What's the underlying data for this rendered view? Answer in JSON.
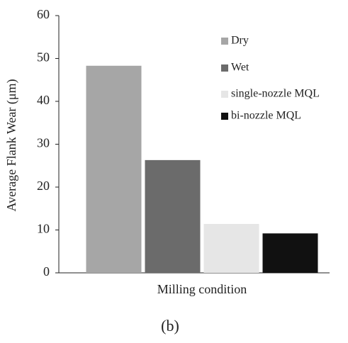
{
  "chart_data": {
    "type": "bar",
    "y_label": "Average Flank Wear (μm)",
    "x_label": "Milling condition",
    "caption": "(b)",
    "categories": [
      null
    ],
    "series": [
      {
        "name": "Dry",
        "color": "#a6a6a6",
        "values": [
          48.3
        ]
      },
      {
        "name": "Wet",
        "color": "#6b6b6b",
        "values": [
          26.3
        ]
      },
      {
        "name": "single-nozzle MQL",
        "color": "#e6e6e6",
        "values": [
          11.4
        ]
      },
      {
        "name": "bi-nozzle MQL",
        "color": "#111111",
        "values": [
          9.2
        ]
      }
    ],
    "ylim": [
      0,
      60
    ],
    "yticks": [
      0,
      10,
      20,
      30,
      40,
      50,
      60
    ],
    "grid": false,
    "legend": "upper right"
  }
}
